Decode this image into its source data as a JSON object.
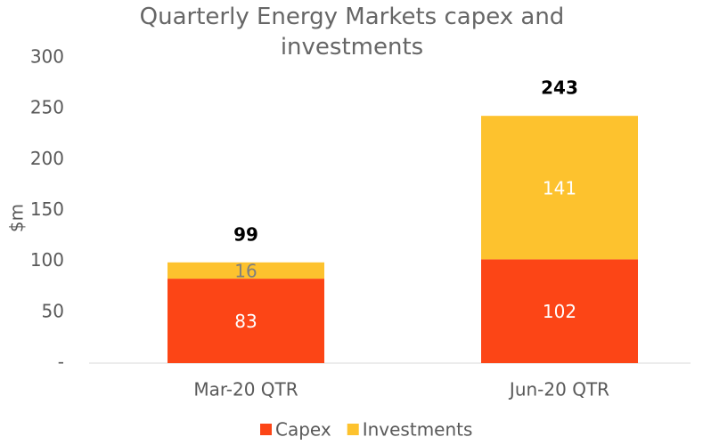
{
  "chart_data": {
    "type": "stacked_bar",
    "title": "Quarterly Energy Markets capex and investments",
    "ylabel": "$m",
    "categories": [
      "Mar-20 QTR",
      "Jun-20 QTR"
    ],
    "series": [
      {
        "name": "Capex",
        "color": "#fc4516",
        "values": [
          83,
          102
        ]
      },
      {
        "name": "Investments",
        "color": "#fdc22e",
        "values": [
          16,
          141
        ]
      }
    ],
    "totals": [
      99,
      243
    ],
    "ylim": [
      0,
      300
    ],
    "yticks": [
      {
        "value": 0,
        "label": "-"
      },
      50,
      100,
      150,
      200,
      250,
      300
    ],
    "legend": "bottom"
  }
}
